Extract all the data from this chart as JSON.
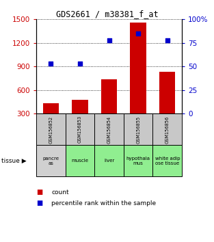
{
  "title": "GDS2661 / m38381_f_at",
  "samples": [
    "GSM156852",
    "GSM156853",
    "GSM156854",
    "GSM156855",
    "GSM156856"
  ],
  "tissues": [
    "pancre\nas",
    "muscle",
    "liver",
    "hypothala\nmus",
    "white adip\nose tissue"
  ],
  "tissue_colors": [
    "#d0d0d0",
    "#90ee90",
    "#90ee90",
    "#90ee90",
    "#90ee90"
  ],
  "counts": [
    430,
    480,
    740,
    1460,
    830
  ],
  "percentile_ranks": [
    53,
    53,
    78,
    85,
    78
  ],
  "ylim_left": [
    300,
    1500
  ],
  "ylim_right": [
    0,
    100
  ],
  "yticks_left": [
    300,
    600,
    900,
    1200,
    1500
  ],
  "yticks_right": [
    0,
    25,
    50,
    75,
    100
  ],
  "bar_color": "#cc0000",
  "dot_color": "#0000cc",
  "bg_color": "#ffffff",
  "left_tick_color": "#cc0000",
  "right_tick_color": "#0000cc",
  "legend_count_label": "count",
  "legend_pct_label": "percentile rank within the sample",
  "tissue_label": "tissue"
}
